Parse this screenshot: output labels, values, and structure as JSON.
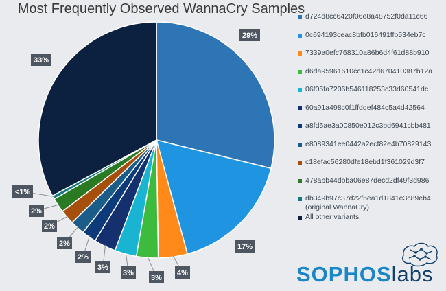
{
  "chart_data": {
    "type": "pie",
    "title": "Most Frequently Observed WannaCry Samples",
    "slices": [
      {
        "label": "d724d8cc6420f06e8a48752f0da11c66",
        "value": 29,
        "data_label": "29%",
        "color": "#2e75b6"
      },
      {
        "label": "0c694193ceac8bfb016491ffb534eb7c",
        "value": 17,
        "data_label": "17%",
        "color": "#1f94e0"
      },
      {
        "label": "7339a0efc768310a86b6d4f61d88b910",
        "value": 4,
        "data_label": "4%",
        "color": "#ff8a1a"
      },
      {
        "label": "d6da95961610cc1c42d670410387b12a",
        "value": 3,
        "data_label": "3%",
        "color": "#3dbb3d"
      },
      {
        "label": "06f05fa7206b546118253c33d60541dc",
        "value": 3,
        "data_label": "3%",
        "color": "#19b4d2"
      },
      {
        "label": "60a91a498c0f1ffddef484c5a4d42564",
        "value": 3,
        "data_label": "3%",
        "color": "#14306e"
      },
      {
        "label": "a8fd5ae3a00850e012c3bd6941cbb481",
        "value": 2,
        "data_label": "2%",
        "color": "#0d3a78"
      },
      {
        "label": "e8089341ee0442a2ecf82e4b70829143",
        "value": 2,
        "data_label": "2%",
        "color": "#1a5c8a"
      },
      {
        "label": "c18efac56280dfe18ebd1f361029d3f7",
        "value": 2,
        "data_label": "2%",
        "color": "#a64f0c"
      },
      {
        "label": "478abb44dbba06e87decd2df49f3d986",
        "value": 2,
        "data_label": "2%",
        "color": "#2a7a24"
      },
      {
        "label": "db349b97c37d22f5ea1d1841e3c89eb4\n(original WannaCry)",
        "value": 0.5,
        "data_label": "<1%",
        "color": "#137a82"
      },
      {
        "label": "All other variants",
        "value": 33,
        "data_label": "33%",
        "color": "#0c2040"
      }
    ],
    "legend_position": "right"
  },
  "logo": {
    "part1": "SOPHOS",
    "part2": "labs"
  },
  "colors": {
    "background": "#e9ebee",
    "label_box": "#4d5661"
  }
}
